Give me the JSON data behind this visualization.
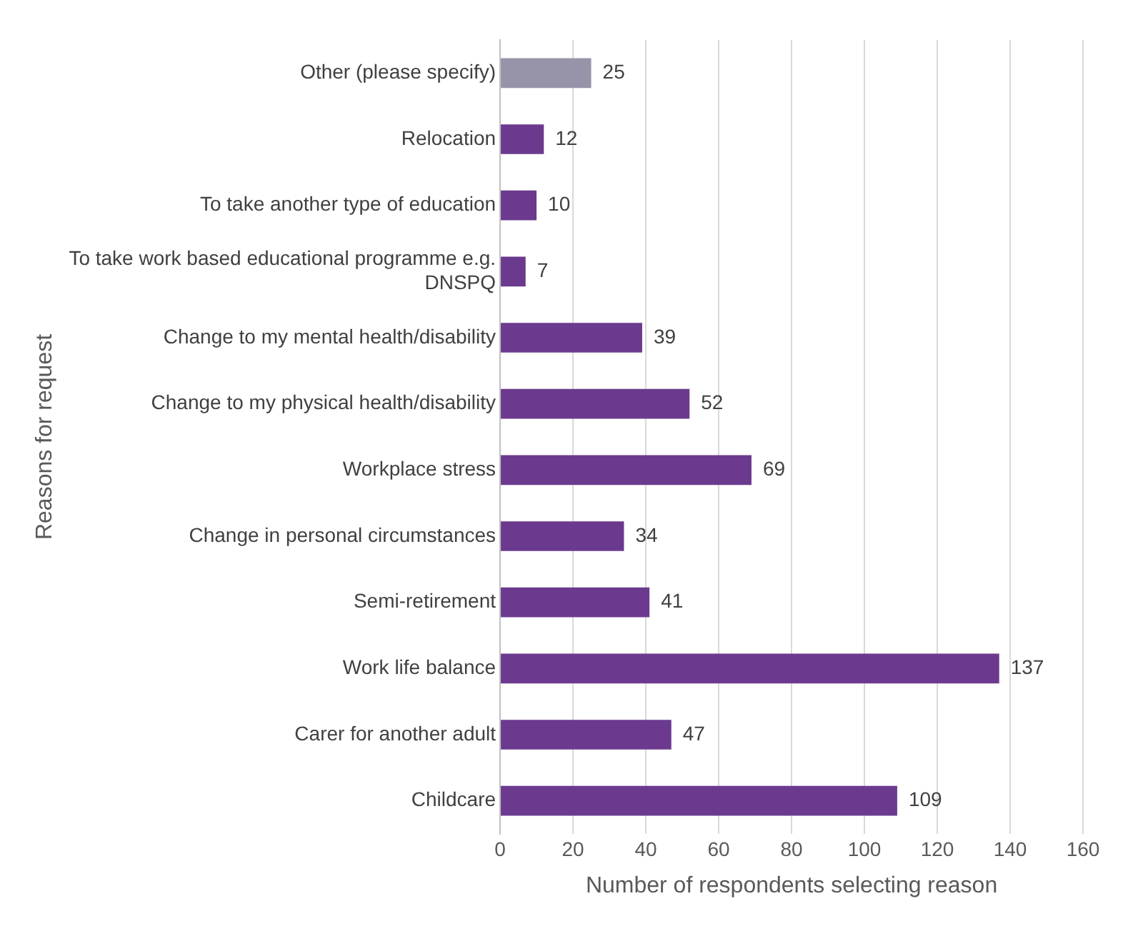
{
  "chart_data": {
    "type": "bar",
    "orientation": "horizontal",
    "xlabel": "Number of respondents selecting reason",
    "ylabel": "Reasons for request",
    "categories": [
      "Other (please specify)",
      "Relocation",
      "To take another type of education",
      "To take work based educational programme e.g. DNSPQ",
      "Change to my mental health/disability",
      "Change to my physical health/disability",
      "Workplace stress",
      "Change in personal circumstances",
      "Semi-retirement",
      "Work life balance",
      "Carer for another adult",
      "Childcare"
    ],
    "values": [
      25,
      12,
      10,
      7,
      39,
      52,
      69,
      34,
      41,
      137,
      47,
      109
    ],
    "colors": [
      "#9793a8",
      "#6b3a8e",
      "#6b3a8e",
      "#6b3a8e",
      "#6b3a8e",
      "#6b3a8e",
      "#6b3a8e",
      "#6b3a8e",
      "#6b3a8e",
      "#6b3a8e",
      "#6b3a8e",
      "#6b3a8e"
    ],
    "xlim": [
      0,
      160
    ],
    "xticks": [
      0,
      20,
      40,
      60,
      80,
      100,
      120,
      140,
      160
    ],
    "grid": "x",
    "data_labels": true,
    "legend": false
  }
}
